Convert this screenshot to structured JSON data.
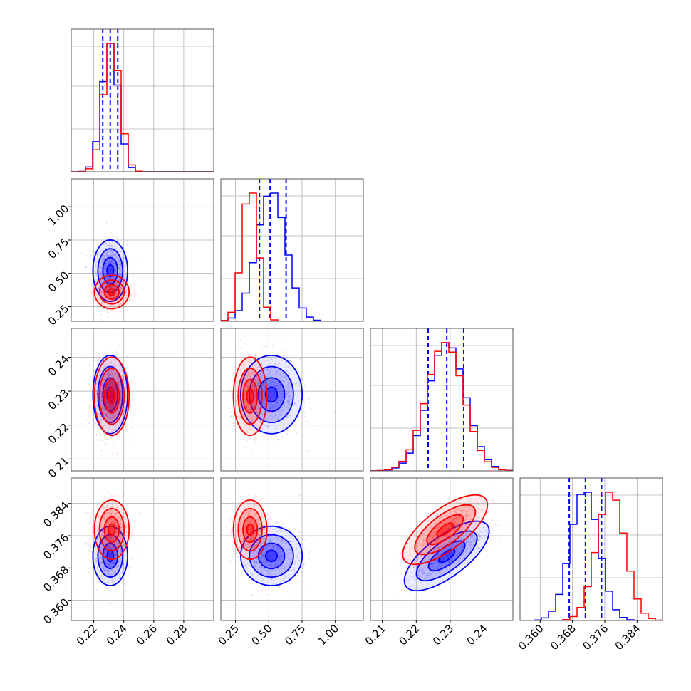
{
  "chart_data": {
    "type": "scatter",
    "title": "",
    "colors": {
      "primary": "#0000ff",
      "secondary": "#ff0000",
      "grid": "#b0b0b0",
      "axes": "#555555"
    },
    "grid": true,
    "legend": "none",
    "params": [
      {
        "range": [
          0.205,
          0.3
        ],
        "ticks": [
          "0.22",
          "0.24",
          "0.26",
          "0.28"
        ]
      },
      {
        "range": [
          0.14,
          1.21
        ],
        "ticks": [
          "0.25",
          "0.50",
          "0.75",
          "1.00"
        ]
      },
      {
        "range": [
          0.2065,
          0.2485
        ],
        "ticks": [
          "0.21",
          "0.22",
          "0.23",
          "0.24"
        ]
      },
      {
        "range": [
          0.355,
          0.3903
        ],
        "ticks": [
          "0.360",
          "0.368",
          "0.376",
          "0.384"
        ]
      }
    ],
    "series": [
      {
        "color": "#0000ff",
        "means": [
          0.231,
          0.52,
          0.229,
          0.371
        ],
        "sigmas": [
          0.0055,
          0.11,
          0.0055,
          0.0035
        ],
        "quantiles": [
          [
            0.226,
            0.231,
            0.236
          ],
          [
            0.43,
            0.51,
            0.63
          ],
          [
            0.2235,
            0.229,
            0.234
          ],
          [
            0.3672,
            0.3712,
            0.3752
          ]
        ]
      },
      {
        "color": "#ff0000",
        "means": [
          0.232,
          0.36,
          0.2285,
          0.3775
        ],
        "sigmas": [
          0.0055,
          0.06,
          0.0055,
          0.0035
        ],
        "quantiles": []
      }
    ],
    "correlations": [
      {
        "pair": [
          2,
          3
        ],
        "rho": 0.85
      }
    ]
  }
}
